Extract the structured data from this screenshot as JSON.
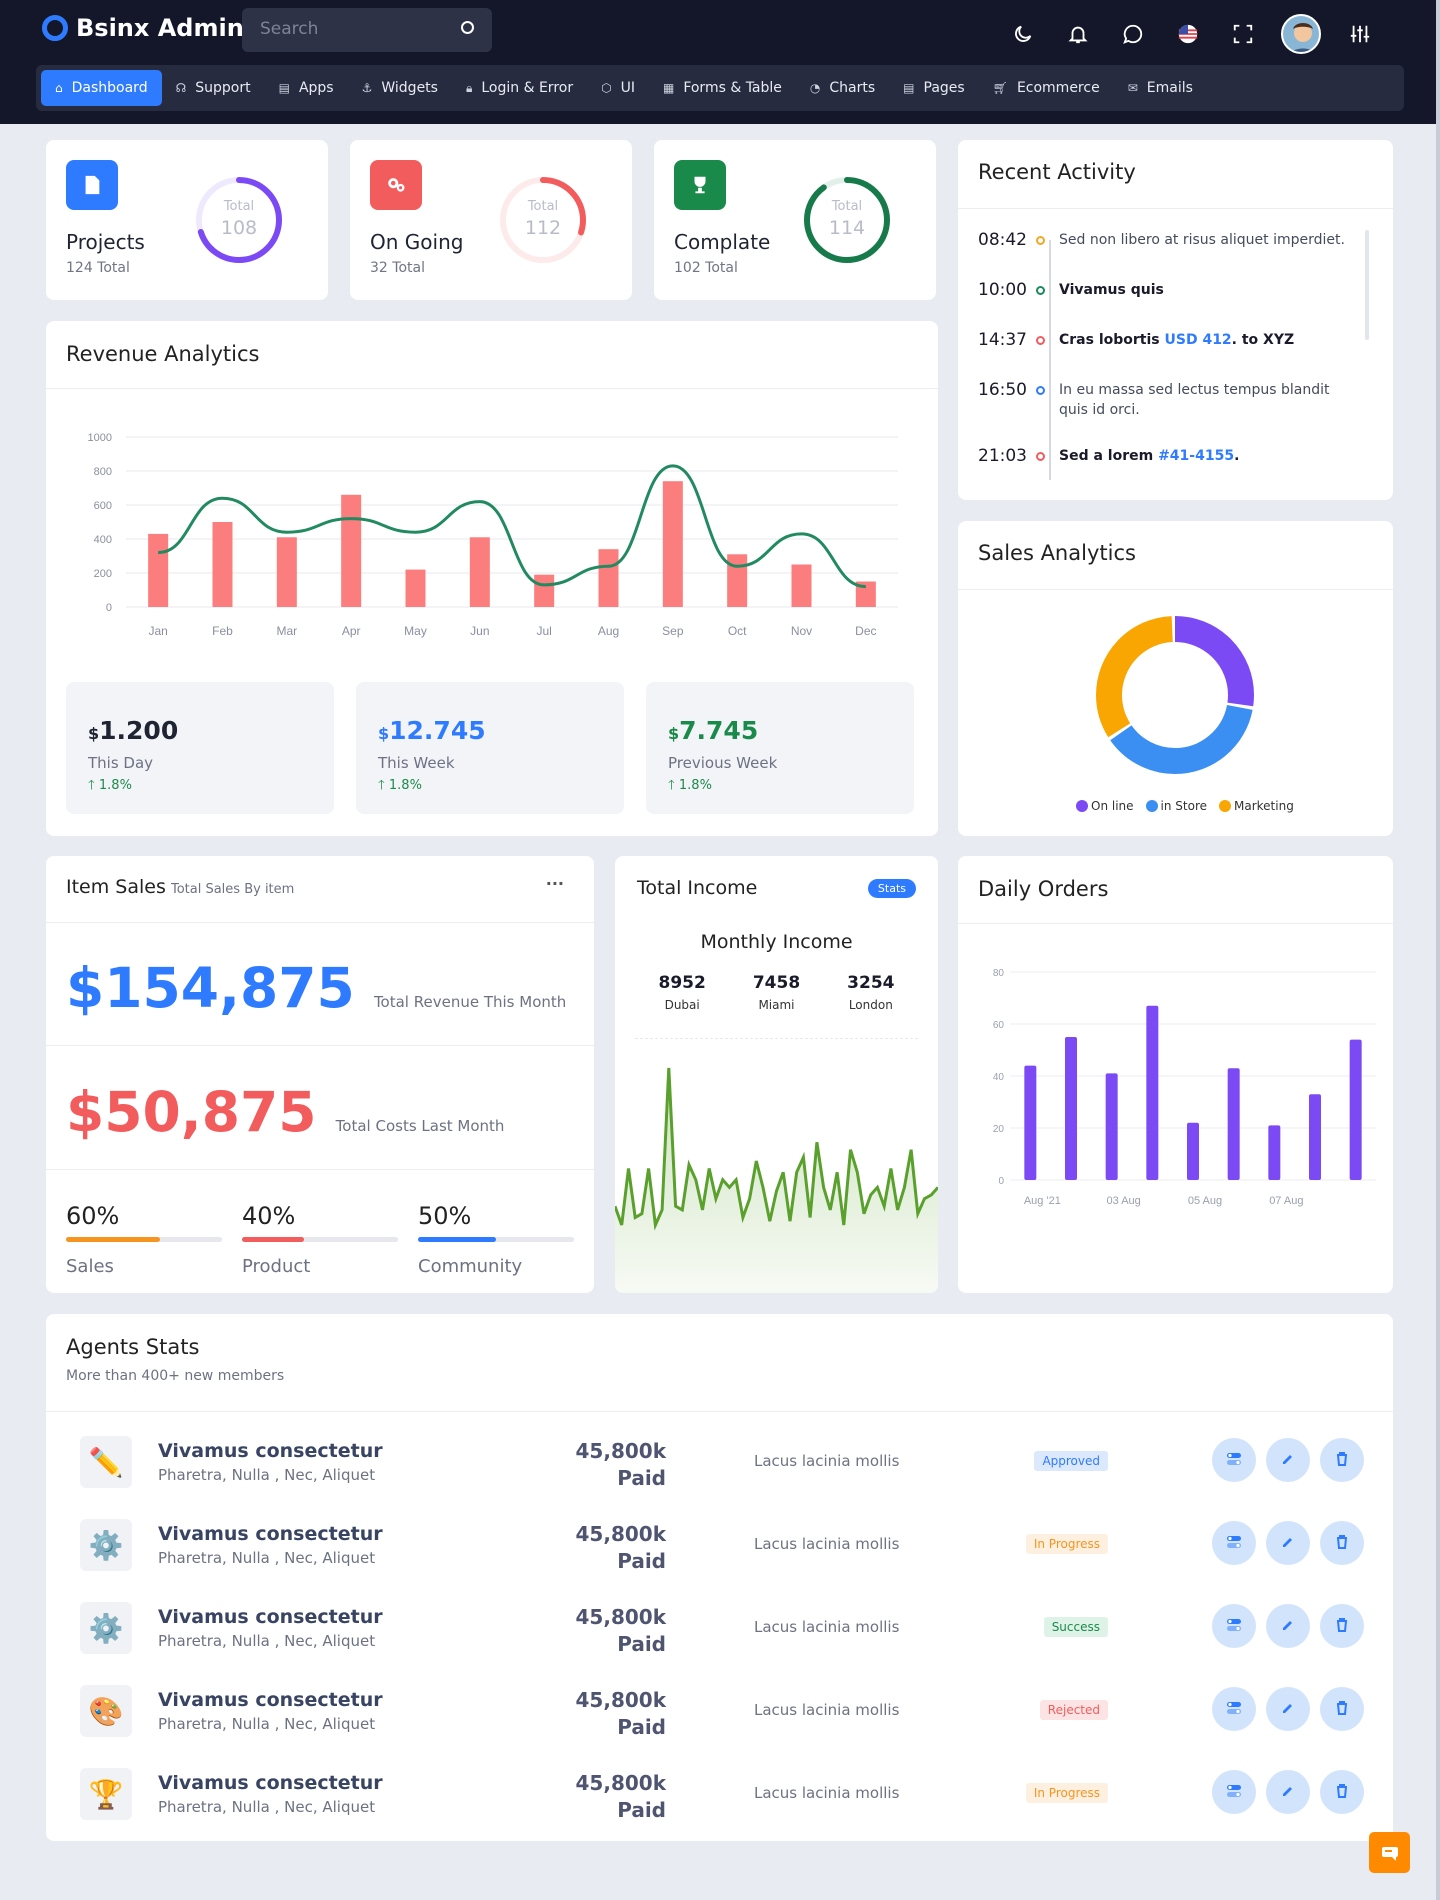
{
  "header": {
    "brand": "Bsinx Admin",
    "search_placeholder": "Search",
    "icons": [
      "moon-icon",
      "bell-icon",
      "chat-icon",
      "us-flag-icon",
      "fullscreen-icon",
      "avatar",
      "settings-sliders-icon"
    ]
  },
  "nav": [
    {
      "label": "Dashboard",
      "icon": "home-icon",
      "active": true
    },
    {
      "label": "Support",
      "icon": "headset-icon"
    },
    {
      "label": "Apps",
      "icon": "apps-icon"
    },
    {
      "label": "Widgets",
      "icon": "anchor-icon"
    },
    {
      "label": "Login & Error",
      "icon": "lock-icon"
    },
    {
      "label": "UI",
      "icon": "box-icon"
    },
    {
      "label": "Forms & Table",
      "icon": "table-icon"
    },
    {
      "label": "Charts",
      "icon": "pie-icon"
    },
    {
      "label": "Pages",
      "icon": "page-icon"
    },
    {
      "label": "Ecommerce",
      "icon": "cart-icon"
    },
    {
      "label": "Emails",
      "icon": "mail-icon"
    }
  ],
  "stats": [
    {
      "name": "Projects",
      "sub": "124 Total",
      "ring_label": "Total",
      "ring_value": "108",
      "color": "#7b4af5",
      "bg": "#2f7bff",
      "progress": 0.7
    },
    {
      "name": "On Going",
      "sub": "32 Total",
      "ring_label": "Total",
      "ring_value": "112",
      "color": "#f25c5c",
      "bg": "#f25c5c",
      "progress": 0.3
    },
    {
      "name": "Complate",
      "sub": "102 Total",
      "ring_label": "Total",
      "ring_value": "114",
      "color": "#167a4a",
      "bg": "#1a8a4a",
      "progress": 0.9
    }
  ],
  "activity": {
    "title": "Recent Activity",
    "items": [
      {
        "time": "08:42",
        "text": "Sed non libero at risus aliquet imperdiet.",
        "color": "#f5a623",
        "bold": false
      },
      {
        "time": "10:00",
        "text": "Vivamus quis",
        "color": "#1a8a5a",
        "bold": true
      },
      {
        "time": "14:37",
        "text": "Cras lobortis ",
        "link": "USD 412",
        "after": ". to XYZ",
        "color": "#f25c5c",
        "bold": true
      },
      {
        "time": "16:50",
        "text": "In eu massa sed lectus tempus blandit quis id orci.",
        "color": "#2f7bff",
        "bold": false
      },
      {
        "time": "21:03",
        "text": "Sed a lorem ",
        "link": "#41-4155",
        "after": ".",
        "color": "#f25c5c",
        "bold": true
      }
    ]
  },
  "revenue": {
    "title": "Revenue Analytics",
    "mini": [
      {
        "currency": "$",
        "value": "1.200",
        "label": "This Day",
        "pct": "1.8%",
        "color": "#1f2433"
      },
      {
        "currency": "$",
        "value": "12.745",
        "label": "This Week",
        "pct": "1.8%",
        "color": "#2f7bff"
      },
      {
        "currency": "$",
        "value": "7.745",
        "label": "Previous Week",
        "pct": "1.8%",
        "color": "#1a8a4a"
      }
    ]
  },
  "sales": {
    "title": "Sales Analytics",
    "legend": [
      {
        "label": "On line",
        "color": "#7b4af5"
      },
      {
        "label": "in Store",
        "color": "#3b8ff2"
      },
      {
        "label": "Marketing",
        "color": "#f9a602"
      }
    ]
  },
  "item_sales": {
    "title": "Item Sales",
    "subtitle": "Total Sales By item",
    "more": "···",
    "revenue": "$154,875",
    "revenue_label": "Total Revenue This Month",
    "costs": "$50,875",
    "costs_label": "Total Costs Last Month",
    "progress": [
      {
        "value": "60%",
        "label": "Sales",
        "pct": 0.6,
        "color": "#f5951f"
      },
      {
        "value": "40%",
        "label": "Product",
        "pct": 0.4,
        "color": "#f25c5c"
      },
      {
        "value": "50%",
        "label": "Community",
        "pct": 0.5,
        "color": "#2f7bff"
      }
    ]
  },
  "income": {
    "title": "Total Income",
    "badge": "Stats",
    "subtitle": "Monthly Income",
    "cities": [
      {
        "v": "8952",
        "c": "Dubai"
      },
      {
        "v": "7458",
        "c": "Miami"
      },
      {
        "v": "3254",
        "c": "London"
      }
    ]
  },
  "orders": {
    "title": "Daily Orders"
  },
  "agents": {
    "title": "Agents Stats",
    "subtitle": "More than 400+ new members",
    "rows": [
      {
        "name": "Vivamus consectetur",
        "sub": "Pharetra, Nulla , Nec, Aliquet",
        "amount": "45,800k",
        "paid": "Paid",
        "desc": "Lacus lacinia mollis",
        "status": "Approved",
        "status_color": "#2f7bff",
        "status_bg": "#dce9fd",
        "icon": "✏️"
      },
      {
        "name": "Vivamus consectetur",
        "sub": "Pharetra, Nulla , Nec, Aliquet",
        "amount": "45,800k",
        "paid": "Paid",
        "desc": "Lacus lacinia mollis",
        "status": "In Progress",
        "status_color": "#f5951f",
        "status_bg": "#fdf0e0",
        "icon": "⚙️"
      },
      {
        "name": "Vivamus consectetur",
        "sub": "Pharetra, Nulla , Nec, Aliquet",
        "amount": "45,800k",
        "paid": "Paid",
        "desc": "Lacus lacinia mollis",
        "status": "Success",
        "status_color": "#1a8a4a",
        "status_bg": "#dff2e7",
        "icon": "⚙️"
      },
      {
        "name": "Vivamus consectetur",
        "sub": "Pharetra, Nulla , Nec, Aliquet",
        "amount": "45,800k",
        "paid": "Paid",
        "desc": "Lacus lacinia mollis",
        "status": "Rejected",
        "status_color": "#f25c5c",
        "status_bg": "#fde4e4",
        "icon": "🎨"
      },
      {
        "name": "Vivamus consectetur",
        "sub": "Pharetra, Nulla , Nec, Aliquet",
        "amount": "45,800k",
        "paid": "Paid",
        "desc": "Lacus lacinia mollis",
        "status": "In Progress",
        "status_color": "#f5951f",
        "status_bg": "#fdf0e0",
        "icon": "🏆"
      }
    ]
  },
  "chart_data": [
    {
      "type": "bar",
      "title": "Revenue Analytics",
      "categories": [
        "Jan",
        "Feb",
        "Mar",
        "Apr",
        "May",
        "Jun",
        "Jul",
        "Aug",
        "Sep",
        "Oct",
        "Nov",
        "Dec"
      ],
      "series": [
        {
          "type": "bar",
          "values": [
            430,
            500,
            410,
            660,
            220,
            410,
            190,
            340,
            740,
            310,
            250,
            150
          ]
        },
        {
          "type": "line",
          "values": [
            320,
            640,
            440,
            520,
            440,
            620,
            130,
            240,
            830,
            240,
            430,
            120
          ]
        }
      ],
      "ylim": [
        0,
        1000
      ],
      "yticks": [
        0,
        200,
        400,
        600,
        800,
        1000
      ],
      "bar_color": "#fb7d7d",
      "line_color": "#228a60"
    },
    {
      "type": "pie",
      "title": "Sales Analytics",
      "categories": [
        "On line",
        "in Store",
        "Marketing"
      ],
      "values": [
        28,
        38,
        34
      ],
      "colors": [
        "#7b4af5",
        "#3b8ff2",
        "#f9a602"
      ]
    },
    {
      "type": "area",
      "title": "Monthly Income",
      "values": [
        5,
        0,
        15,
        2,
        3,
        15,
        0,
        4,
        55,
        5,
        4,
        16,
        12,
        4,
        15,
        7,
        12,
        10,
        12,
        2,
        7,
        17,
        10,
        1,
        9,
        14,
        1,
        14,
        18,
        2,
        22,
        10,
        4,
        14,
        0,
        20,
        14,
        3,
        8,
        10,
        5,
        15,
        4,
        10,
        20,
        3,
        7,
        8,
        10
      ],
      "color": "#5aa02c"
    },
    {
      "type": "bar",
      "title": "Daily Orders",
      "categories": [
        "Aug '21",
        "",
        "03 Aug",
        "",
        "05 Aug",
        "",
        "07 Aug",
        "",
        ""
      ],
      "values": [
        44,
        55,
        41,
        67,
        22,
        43,
        21,
        33,
        54
      ],
      "ylim": [
        0,
        80
      ],
      "yticks": [
        0,
        20,
        40,
        60,
        80
      ],
      "color": "#7b4af5"
    }
  ]
}
